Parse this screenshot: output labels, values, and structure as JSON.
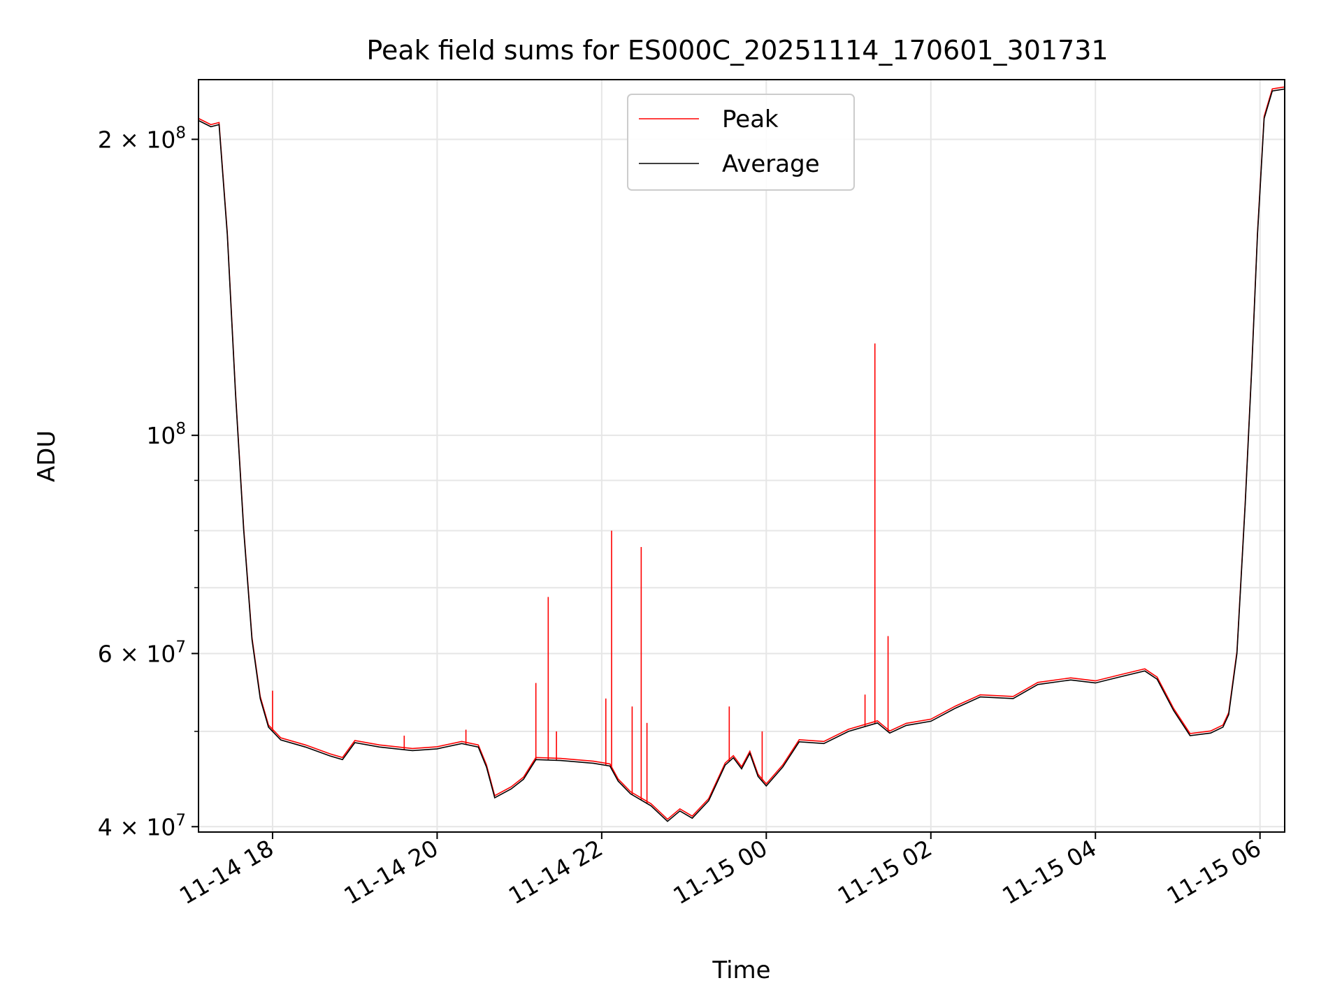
{
  "chart_data": {
    "type": "line",
    "title": "Peak field sums for ES000C_20251114_170601_301731",
    "xlabel": "Time",
    "ylabel": "ADU",
    "yscale": "log",
    "ylim": [
      39500000,
      230000000
    ],
    "xlim_hours": [
      17.1,
      30.3
    ],
    "grid": true,
    "legend_position": "top-center",
    "x_ticks": [
      {
        "hour": 18,
        "label": "11-14 18"
      },
      {
        "hour": 20,
        "label": "11-14 20"
      },
      {
        "hour": 22,
        "label": "11-14 22"
      },
      {
        "hour": 24,
        "label": "11-15 00"
      },
      {
        "hour": 26,
        "label": "11-15 02"
      },
      {
        "hour": 28,
        "label": "11-15 04"
      },
      {
        "hour": 30,
        "label": "11-15 06"
      }
    ],
    "y_major_ticks": [
      {
        "value": 40000000,
        "base": "4 × 10",
        "exp": "7"
      },
      {
        "value": 60000000,
        "base": "6 × 10",
        "exp": "7"
      },
      {
        "value": 100000000,
        "base": "10",
        "exp": "8"
      },
      {
        "value": 200000000,
        "base": "2 × 10",
        "exp": "8"
      }
    ],
    "y_minor_ticks": [
      50000000,
      70000000,
      80000000,
      90000000
    ],
    "series": [
      {
        "name": "Peak",
        "color": "#ff0000",
        "spikes": [
          {
            "hour": 18.0,
            "value": 55000000
          },
          {
            "hour": 19.6,
            "value": 49500000
          },
          {
            "hour": 20.35,
            "value": 50200000
          },
          {
            "hour": 21.2,
            "value": 56000000
          },
          {
            "hour": 21.35,
            "value": 68500000
          },
          {
            "hour": 21.45,
            "value": 50000000
          },
          {
            "hour": 22.05,
            "value": 54000000
          },
          {
            "hour": 22.12,
            "value": 80000000
          },
          {
            "hour": 22.37,
            "value": 53000000
          },
          {
            "hour": 22.48,
            "value": 77000000
          },
          {
            "hour": 22.55,
            "value": 51000000
          },
          {
            "hour": 23.55,
            "value": 53000000
          },
          {
            "hour": 23.95,
            "value": 50000000
          },
          {
            "hour": 25.2,
            "value": 54500000
          },
          {
            "hour": 25.32,
            "value": 124000000
          },
          {
            "hour": 25.48,
            "value": 62500000
          }
        ]
      },
      {
        "name": "Average",
        "color": "#000000",
        "points": [
          [
            17.1,
            209000000
          ],
          [
            17.25,
            206000000
          ],
          [
            17.35,
            207000000
          ],
          [
            17.45,
            160000000
          ],
          [
            17.55,
            110000000
          ],
          [
            17.65,
            80000000
          ],
          [
            17.75,
            62000000
          ],
          [
            17.85,
            54000000
          ],
          [
            17.95,
            50500000
          ],
          [
            18.1,
            49000000
          ],
          [
            18.4,
            48200000
          ],
          [
            18.7,
            47200000
          ],
          [
            18.85,
            46800000
          ],
          [
            19.0,
            48700000
          ],
          [
            19.3,
            48200000
          ],
          [
            19.7,
            47800000
          ],
          [
            20.0,
            48000000
          ],
          [
            20.3,
            48600000
          ],
          [
            20.5,
            48200000
          ],
          [
            20.6,
            46000000
          ],
          [
            20.7,
            42800000
          ],
          [
            20.9,
            43700000
          ],
          [
            21.05,
            44700000
          ],
          [
            21.2,
            46800000
          ],
          [
            21.5,
            46700000
          ],
          [
            21.9,
            46400000
          ],
          [
            22.1,
            46100000
          ],
          [
            22.2,
            44500000
          ],
          [
            22.35,
            43200000
          ],
          [
            22.6,
            42000000
          ],
          [
            22.8,
            40500000
          ],
          [
            22.95,
            41500000
          ],
          [
            23.1,
            40800000
          ],
          [
            23.3,
            42500000
          ],
          [
            23.5,
            46200000
          ],
          [
            23.6,
            47000000
          ],
          [
            23.7,
            45800000
          ],
          [
            23.8,
            47500000
          ],
          [
            23.9,
            45000000
          ],
          [
            24.0,
            44000000
          ],
          [
            24.2,
            46000000
          ],
          [
            24.4,
            48800000
          ],
          [
            24.7,
            48600000
          ],
          [
            25.0,
            50000000
          ],
          [
            25.35,
            51000000
          ],
          [
            25.5,
            49800000
          ],
          [
            25.7,
            50700000
          ],
          [
            26.0,
            51200000
          ],
          [
            26.3,
            52800000
          ],
          [
            26.6,
            54200000
          ],
          [
            27.0,
            54000000
          ],
          [
            27.3,
            55800000
          ],
          [
            27.7,
            56400000
          ],
          [
            28.0,
            56000000
          ],
          [
            28.3,
            56800000
          ],
          [
            28.6,
            57600000
          ],
          [
            28.75,
            56500000
          ],
          [
            28.95,
            52500000
          ],
          [
            29.15,
            49500000
          ],
          [
            29.4,
            49800000
          ],
          [
            29.55,
            50500000
          ],
          [
            29.62,
            52000000
          ],
          [
            29.72,
            60000000
          ],
          [
            29.82,
            85000000
          ],
          [
            29.9,
            117000000
          ],
          [
            29.97,
            160000000
          ],
          [
            30.05,
            210000000
          ],
          [
            30.15,
            224000000
          ],
          [
            30.3,
            225000000
          ]
        ]
      }
    ]
  }
}
